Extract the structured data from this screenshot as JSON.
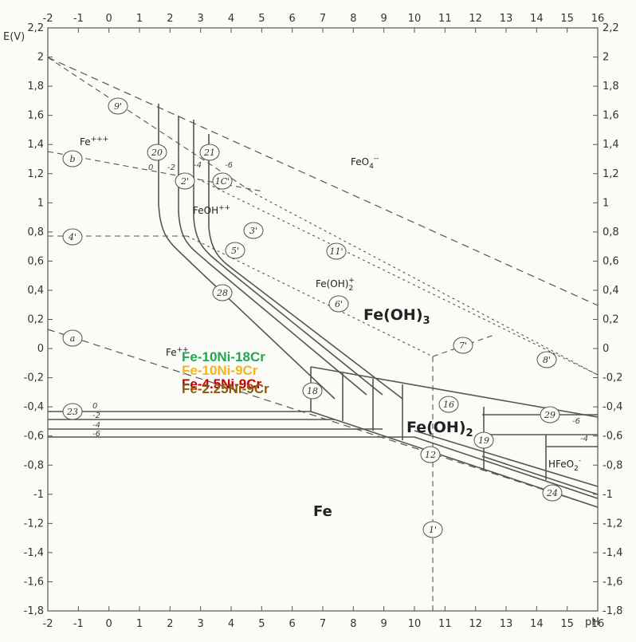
{
  "axes": {
    "y_title": "E(V)",
    "x_title": "pH",
    "x_ticks": [
      "-2",
      "-1",
      "0",
      "1",
      "2",
      "3",
      "4",
      "5",
      "6",
      "7",
      "8",
      "9",
      "10",
      "11",
      "12",
      "13",
      "14",
      "15",
      "16"
    ],
    "y_ticks_left": [
      "2,2",
      "2",
      "1,8",
      "1,6",
      "1,4",
      "1,2",
      "1",
      "0,8",
      "0,6",
      "0,4",
      "0,2",
      "0",
      "-0,2",
      "-0,4",
      "-0,6",
      "-0,8",
      "-1",
      "-1,2",
      "-1,4",
      "-1,6",
      "-1,8"
    ],
    "y_ticks_right": [
      "2,2",
      "2",
      "1,8",
      "1,6",
      "1,4",
      "1,2",
      "1",
      "0,8",
      "0,6",
      "0,4",
      "0,2",
      "0",
      "-0,2",
      "-0,4",
      "-0,6",
      "-0,8",
      "-1",
      "-1,2",
      "-1,4",
      "-1,6",
      "-1,8"
    ],
    "x_range": [
      -2,
      16
    ],
    "y_range": [
      -1.8,
      2.2
    ]
  },
  "regions": {
    "fe3": "Fe",
    "fe3_sup": "+++",
    "fe2": "Fe",
    "fe2_sup": "++",
    "feoh": "FeOH",
    "feoh_sup": "++",
    "feoh2": "Fe(OH)",
    "feoh2_sub": "2",
    "feoh2_sup": "+",
    "feoh3": "Fe(OH)",
    "feoh3_sub": "3",
    "feoh2_solid": "Fe(OH)",
    "feoh2_solid_sub": "2",
    "feo4": "FeO",
    "feo4_sub": "4",
    "feo4_sup": "--",
    "hfeo2": "HFeO",
    "hfeo2_sub": "2",
    "hfeo2_sup": "-",
    "fe_metal": "Fe"
  },
  "line_labels": [
    "9'",
    "b",
    "4'",
    "a",
    "20",
    "2'",
    "21",
    "1C'",
    "3'",
    "5'",
    "28",
    "11'",
    "6'",
    "7'",
    "8'",
    "23",
    "18",
    "16",
    "29",
    "19",
    "12",
    "24",
    "1'"
  ],
  "conc_labels": {
    "l20": [
      "0",
      "-2"
    ],
    "l21": [
      "-4",
      "-6"
    ],
    "l23": [
      "0",
      "-2",
      "-4",
      "-6"
    ],
    "l29": [
      "-6",
      "-4"
    ]
  },
  "legend": [
    {
      "text": "Fe-10Ni-18Cr",
      "color": "#1fa84e"
    },
    {
      "text": "Fe-10Ni-9Cr",
      "color": "#f2b51c"
    },
    {
      "text": "Fe-4.5Ni-9Cr",
      "color": "#c00000"
    },
    {
      "text": "Fe-2.25Ni-9Cr",
      "color": "#8a5a10"
    }
  ],
  "legend_segments": [
    {
      "color": "#1fa84e",
      "x_from": 6.6,
      "x_to": 8.0,
      "e_from": -0.14,
      "e_to": -0.21
    },
    {
      "color": "#f2b51c",
      "x_from": 6.6,
      "x_to": 9.5,
      "e_from": -0.16,
      "e_to": -0.29
    },
    {
      "color": "#c00000",
      "x_from": 6.6,
      "x_to": 9.6,
      "e_from": -0.18,
      "e_to": -0.31
    },
    {
      "color": "#8a5a10",
      "x_from": 6.6,
      "x_to": 9.6,
      "e_from": -0.19,
      "e_to": -0.32
    }
  ]
}
